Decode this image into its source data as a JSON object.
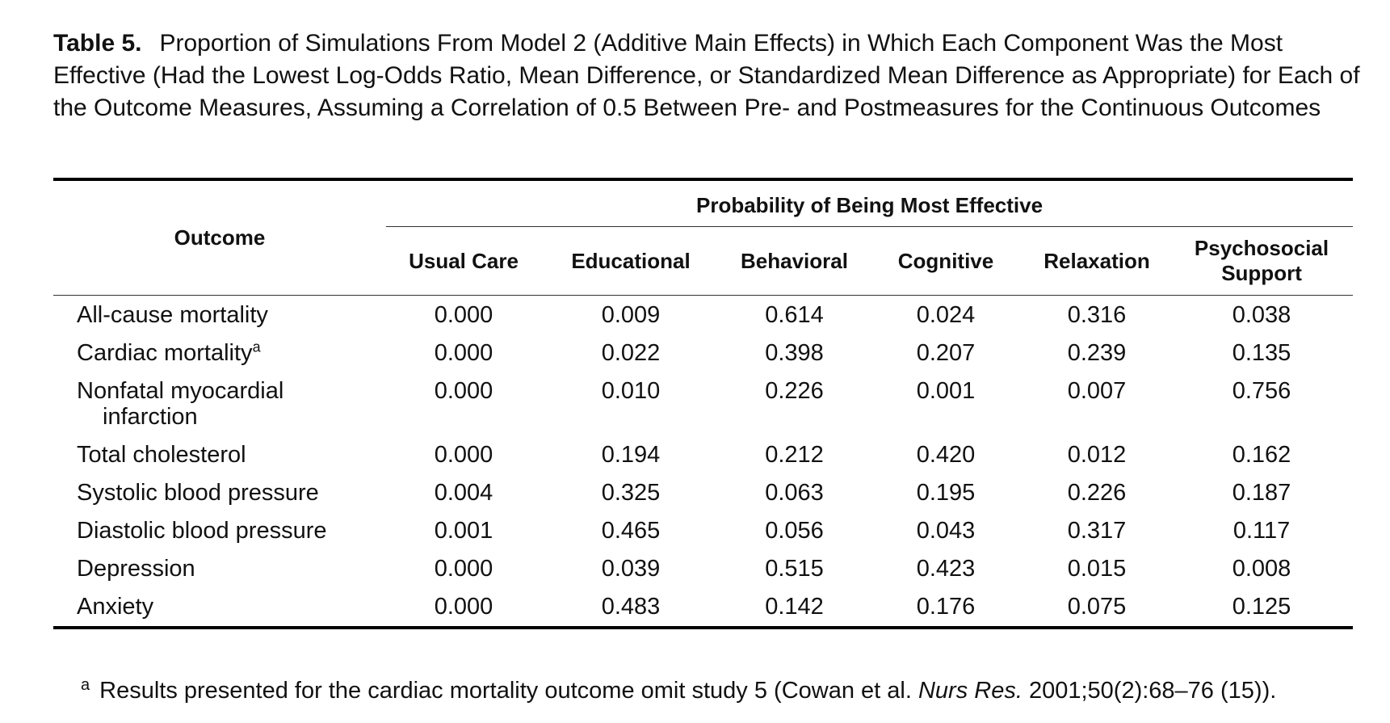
{
  "caption": {
    "label": "Table 5.",
    "text": "Proportion of Simulations From Model 2 (Additive Main Effects) in Which Each Component Was the Most Effective (Had the Lowest Log-Odds Ratio, Mean Difference, or Standardized Mean Difference as Appropriate) for Each of the Outcome Measures, Assuming a Correlation of 0.5 Between Pre- and Postmeasures for the Continuous Outcomes"
  },
  "table": {
    "outcome_header": "Outcome",
    "spanner_header": "Probability of Being Most Effective",
    "columns": [
      "Usual Care",
      "Educational",
      "Behavioral",
      "Cognitive",
      "Relaxation",
      "Psychosocial Support"
    ],
    "rows": [
      {
        "outcome": "All-cause mortality",
        "values": [
          "0.000",
          "0.009",
          "0.614",
          "0.024",
          "0.316",
          "0.038"
        ]
      },
      {
        "outcome": "Cardiac mortality",
        "sup": "a",
        "values": [
          "0.000",
          "0.022",
          "0.398",
          "0.207",
          "0.239",
          "0.135"
        ]
      },
      {
        "outcome": "Nonfatal myocardial",
        "outcome_cont": "infarction",
        "values": [
          "0.000",
          "0.010",
          "0.226",
          "0.001",
          "0.007",
          "0.756"
        ]
      },
      {
        "outcome": "Total cholesterol",
        "values": [
          "0.000",
          "0.194",
          "0.212",
          "0.420",
          "0.012",
          "0.162"
        ]
      },
      {
        "outcome": "Systolic blood pressure",
        "values": [
          "0.004",
          "0.325",
          "0.063",
          "0.195",
          "0.226",
          "0.187"
        ]
      },
      {
        "outcome": "Diastolic blood pressure",
        "values": [
          "0.001",
          "0.465",
          "0.056",
          "0.043",
          "0.317",
          "0.117"
        ]
      },
      {
        "outcome": "Depression",
        "values": [
          "0.000",
          "0.039",
          "0.515",
          "0.423",
          "0.015",
          "0.008"
        ]
      },
      {
        "outcome": "Anxiety",
        "values": [
          "0.000",
          "0.483",
          "0.142",
          "0.176",
          "0.075",
          "0.125"
        ]
      }
    ]
  },
  "footnote": {
    "mark": "a",
    "text_before": "Results presented for the cardiac mortality outcome omit study 5 (Cowan et al.",
    "journal": "Nurs Res.",
    "text_after": "2001;50(2):68–76 (15))."
  }
}
